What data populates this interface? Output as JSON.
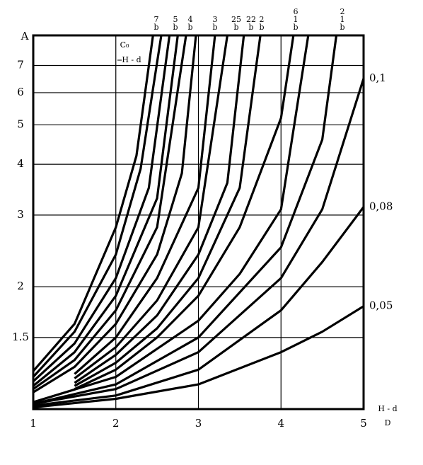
{
  "chart_data": {
    "type": "line",
    "y_label": "A",
    "x_label_top": "H - d",
    "x_label_bottom": "D",
    "inner_label_top": "C₀",
    "inner_label_bottom": "H - d",
    "xlim": [
      1,
      5
    ],
    "xticks": [
      1,
      2,
      3,
      4,
      5
    ],
    "ylim": [
      1,
      8.3
    ],
    "yticks": [
      1.5,
      2,
      3,
      4,
      5,
      6,
      7
    ],
    "log_y": true,
    "grid": true,
    "color": "#000000",
    "top_labels": [
      [
        "7",
        "b"
      ],
      [
        "5",
        "b"
      ],
      [
        "4",
        "b"
      ],
      [
        "3",
        "b"
      ],
      [
        "25",
        "b"
      ],
      [
        "22",
        "b"
      ],
      [
        "2",
        "b"
      ],
      [
        "6",
        "1",
        "b"
      ],
      [
        "2",
        "1",
        "b"
      ]
    ],
    "series": [
      {
        "x": [
          1,
          1.5,
          2,
          2.25,
          2.45
        ],
        "values": [
          1.24,
          1.62,
          2.8,
          4.2,
          8.3
        ]
      },
      {
        "x": [
          1,
          1.5,
          2,
          2.3,
          2.55
        ],
        "values": [
          1.2,
          1.55,
          2.4,
          3.9,
          8.3
        ]
      },
      {
        "x": [
          1,
          1.5,
          2,
          2.4,
          2.65
        ],
        "values": [
          1.17,
          1.45,
          2.1,
          3.5,
          8.3
        ]
      },
      {
        "x": [
          1,
          1.5,
          2,
          2.5,
          2.75
        ],
        "values": [
          1.14,
          1.38,
          1.9,
          3.3,
          8.3
        ]
      },
      {
        "x": [
          1,
          1.5,
          2,
          2.5,
          2.85
        ],
        "values": [
          1.12,
          1.32,
          1.75,
          2.8,
          8.3
        ]
      },
      {
        "x": [
          1,
          1.5,
          2,
          2.5,
          2.8,
          2.97
        ],
        "values": [
          1.1,
          1.27,
          1.62,
          2.4,
          3.8,
          8.3
        ]
      },
      {
        "x": [
          1.5,
          2,
          2.5,
          3,
          3.2
        ],
        "values": [
          1.22,
          1.5,
          2.1,
          3.5,
          8.3
        ]
      },
      {
        "x": [
          1.5,
          2,
          2.5,
          3,
          3.35
        ],
        "values": [
          1.19,
          1.42,
          1.85,
          2.8,
          8.3
        ]
      },
      {
        "x": [
          1.5,
          2,
          2.5,
          3,
          3.35,
          3.55
        ],
        "values": [
          1.16,
          1.36,
          1.7,
          2.4,
          3.6,
          8.3
        ]
      },
      {
        "x": [
          1.5,
          2,
          2.5,
          3,
          3.5,
          3.75
        ],
        "values": [
          1.14,
          1.3,
          1.58,
          2.1,
          3.5,
          8.3
        ]
      },
      {
        "x": [
          1.5,
          2,
          2.5,
          3,
          3.5,
          4,
          4.15
        ],
        "values": [
          1.12,
          1.25,
          1.5,
          1.9,
          2.8,
          5.2,
          8.3
        ]
      },
      {
        "x": [
          1,
          2,
          3,
          3.5,
          4,
          4.33
        ],
        "values": [
          1.04,
          1.2,
          1.65,
          2.15,
          3.1,
          8.3
        ]
      },
      {
        "x": [
          1,
          2,
          3,
          4,
          4.5,
          4.67
        ],
        "values": [
          1.03,
          1.15,
          1.5,
          2.5,
          4.6,
          8.3
        ]
      },
      {
        "name": "0,1",
        "x": [
          1,
          2,
          3,
          4,
          4.5,
          5
        ],
        "values": [
          1.03,
          1.12,
          1.38,
          2.1,
          3.1,
          6.5
        ]
      },
      {
        "name": "0,08",
        "x": [
          1,
          2,
          3,
          4,
          4.5,
          5
        ],
        "values": [
          1.02,
          1.08,
          1.25,
          1.75,
          2.3,
          3.14
        ]
      },
      {
        "name": "0,05",
        "x": [
          1,
          2,
          3,
          4,
          4.5,
          5
        ],
        "values": [
          1.01,
          1.06,
          1.15,
          1.38,
          1.55,
          1.79
        ]
      }
    ]
  }
}
